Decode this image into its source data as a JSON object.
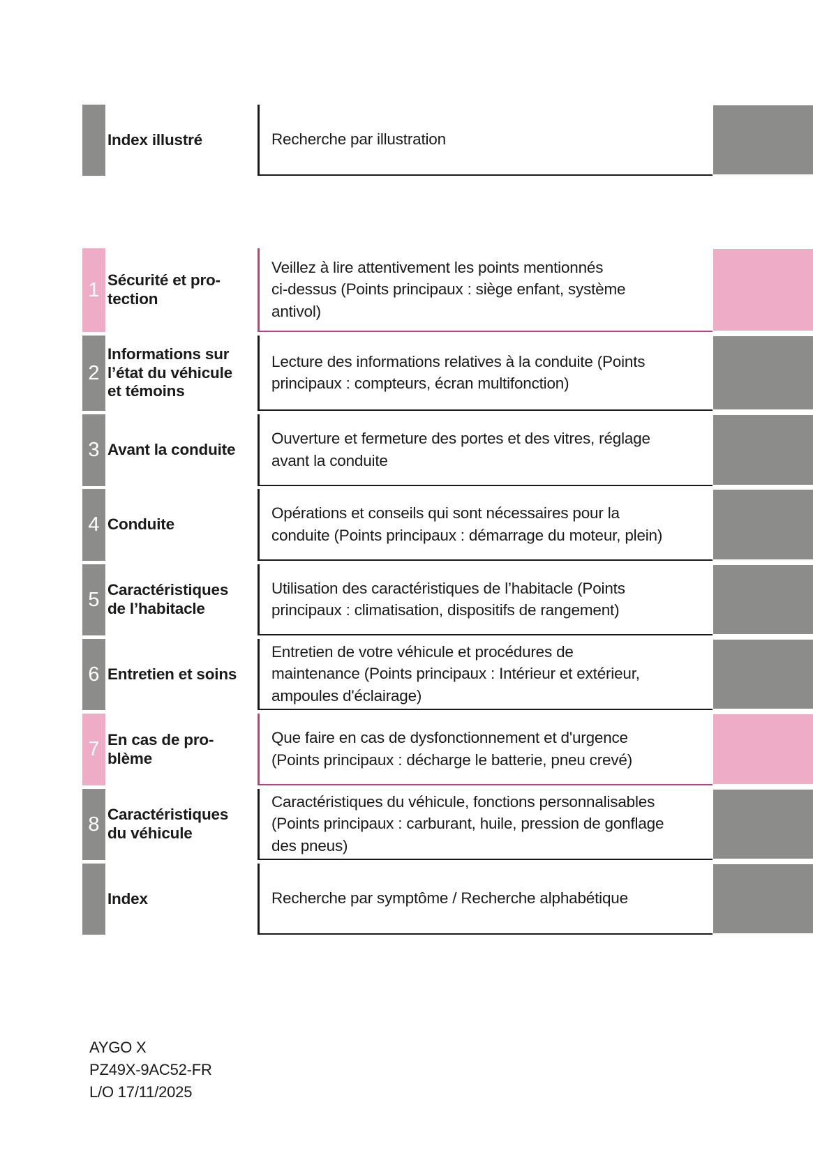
{
  "colors": {
    "gray": "#8C8C8A",
    "pink": "#EEACC6",
    "pink_border": "#BE3F80",
    "dark_border": "#1A1A1A",
    "text": "#1A1A1A",
    "number_text": "#FFFFFF"
  },
  "toc": {
    "rows": [
      {
        "number": "",
        "accent": "gray",
        "label": "Index illustré",
        "description": "Recherche par illustration"
      },
      {
        "number": "1",
        "accent": "pink",
        "label": "Sécurité et pro-\ntection",
        "description": "Veillez à lire attentivement les points mentionnés\nci-dessus (Points principaux : siège enfant, système\nantivol)"
      },
      {
        "number": "2",
        "accent": "gray",
        "label": "Informations sur\nl’état du véhicule\net témoins",
        "description": "Lecture des informations relatives à la conduite (Points\nprincipaux : compteurs, écran multifonction)"
      },
      {
        "number": "3",
        "accent": "gray",
        "label": "Avant la conduite",
        "description": "Ouverture et fermeture des portes et des vitres, réglage\navant la conduite"
      },
      {
        "number": "4",
        "accent": "gray",
        "label": "Conduite",
        "description": "Opérations et conseils qui sont nécessaires pour la\nconduite (Points principaux : démarrage du moteur, plein)"
      },
      {
        "number": "5",
        "accent": "gray",
        "label": "Caractéristiques\nde l’habitacle",
        "description": "Utilisation des caractéristiques de l’habitacle (Points\nprincipaux : climatisation, dispositifs de rangement)"
      },
      {
        "number": "6",
        "accent": "gray",
        "label": "Entretien et soins",
        "description": "Entretien de votre véhicule et procédures de\nmaintenance (Points principaux : Intérieur et extérieur,\nampoules d'éclairage)"
      },
      {
        "number": "7",
        "accent": "pink",
        "label": "En cas de pro-\nblème",
        "description": "Que faire en cas de dysfonctionnement et d'urgence\n(Points principaux : décharge le batterie, pneu crevé)"
      },
      {
        "number": "8",
        "accent": "gray",
        "label": "Caractéristiques\ndu véhicule",
        "description": "Caractéristiques du véhicule, fonctions personnalisables\n(Points principaux : carburant, huile, pression de gonflage\ndes pneus)"
      },
      {
        "number": "",
        "accent": "gray",
        "label": "Index",
        "description": "Recherche par symptôme / Recherche alphabétique"
      }
    ]
  },
  "footer": {
    "model": "AYGO X",
    "part_number": "PZ49X-9AC52-FR",
    "layout_date": "L/O 17/11/2025"
  }
}
